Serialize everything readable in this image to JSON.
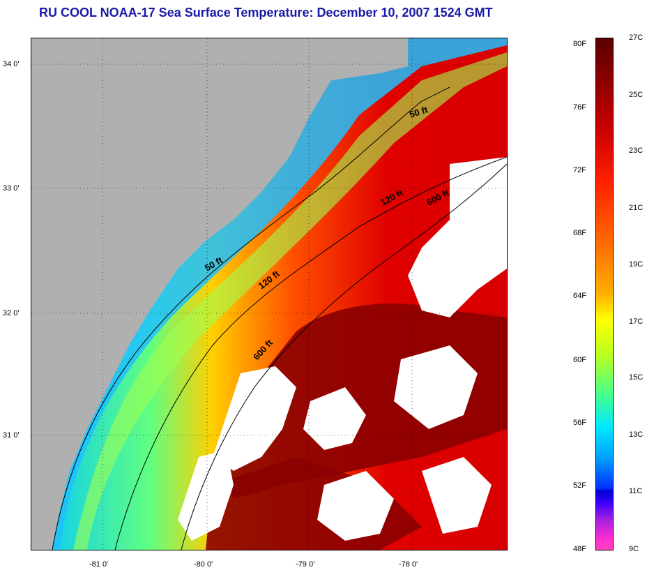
{
  "title": "RU COOL  NOAA-17  Sea Surface Temperature:  December 10, 2007 1524 GMT",
  "lat_labels": [
    "34 0'",
    "33 0'",
    "32 0'",
    "31 0'"
  ],
  "lon_labels": [
    "-81 0'",
    "-80 0'",
    "-79 0'",
    "-78 0'"
  ],
  "isobaths": [
    "50 ft",
    "120 ft",
    "600 ft"
  ],
  "colorbar": {
    "fahrenheit": [
      "80F",
      "76F",
      "72F",
      "68F",
      "64F",
      "60F",
      "56F",
      "52F",
      "48F"
    ],
    "celsius": [
      "27C",
      "25C",
      "23C",
      "21C",
      "19C",
      "17C",
      "15C",
      "13C",
      "11C",
      "9C"
    ]
  },
  "colors": {
    "land": "#b0b0b0",
    "cloud": "#ffffff",
    "title": "#1a1aa8",
    "warm": "#e00000",
    "hot": "#8a0000",
    "cold": "#00a0ff"
  }
}
